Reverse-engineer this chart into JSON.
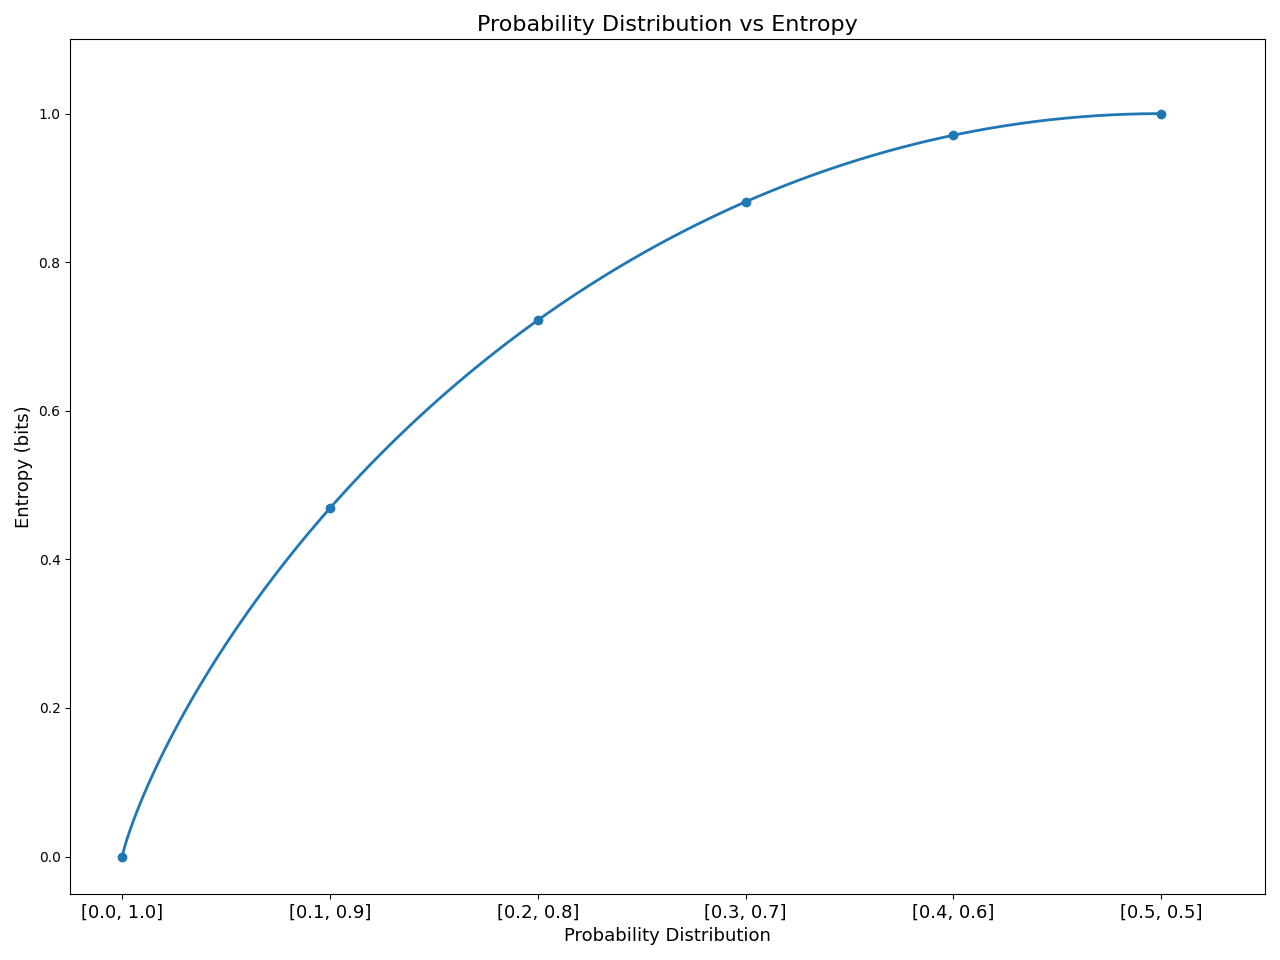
{
  "title": "Probability Distribution vs Entropy",
  "xlabel": "Probability Distribution",
  "ylabel": "Entropy (bits)",
  "distributions": [
    [
      0.0,
      1.0
    ],
    [
      0.1,
      0.9
    ],
    [
      0.2,
      0.8
    ],
    [
      0.3,
      0.7
    ],
    [
      0.4,
      0.6
    ],
    [
      0.5,
      0.5
    ]
  ],
  "entropy_values": [
    0.0,
    0.46899,
    0.72193,
    0.88129,
    0.97095,
    1.0
  ],
  "line_color": "#1f77b4",
  "marker": "o",
  "markersize": 6,
  "linewidth": 2,
  "figsize": [
    12.8,
    9.6
  ],
  "dpi": 100,
  "ylim": [
    -0.05,
    1.1
  ],
  "xlim": [
    -0.25,
    5.5
  ],
  "tick_labels": [
    "[0.0, 1.0]",
    "[0.1, 0.9]",
    "[0.2, 0.8]",
    "[0.3, 0.7]",
    "[0.4, 0.6]",
    "[0.5, 0.5]"
  ],
  "title_fontsize": 16,
  "label_fontsize": 13
}
